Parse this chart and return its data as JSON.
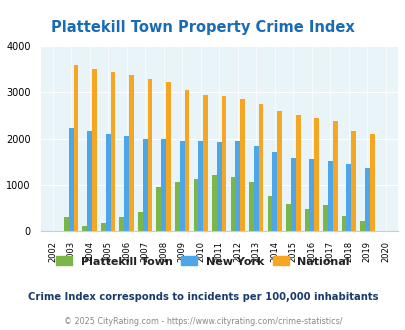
{
  "title": "Plattekill Town Property Crime Index",
  "years": [
    2002,
    2003,
    2004,
    2005,
    2006,
    2007,
    2008,
    2009,
    2010,
    2011,
    2012,
    2013,
    2014,
    2015,
    2016,
    2017,
    2018,
    2019,
    2020
  ],
  "plattekill": [
    0,
    310,
    110,
    175,
    300,
    415,
    950,
    1060,
    1120,
    1210,
    1170,
    1050,
    750,
    590,
    470,
    555,
    330,
    225,
    0
  ],
  "new_york": [
    0,
    2220,
    2170,
    2100,
    2060,
    1995,
    1995,
    1945,
    1945,
    1930,
    1945,
    1830,
    1700,
    1590,
    1555,
    1515,
    1445,
    1355,
    0
  ],
  "national": [
    0,
    3600,
    3510,
    3440,
    3370,
    3285,
    3225,
    3050,
    2950,
    2930,
    2855,
    2745,
    2600,
    2500,
    2445,
    2385,
    2175,
    2095,
    0
  ],
  "plattekill_color": "#7ab648",
  "newyork_color": "#4da6e8",
  "national_color": "#f5a623",
  "bg_color": "#e8f4f8",
  "ylim": [
    0,
    4000
  ],
  "yticks": [
    0,
    1000,
    2000,
    3000,
    4000
  ],
  "title_color": "#1a6bb5",
  "subtitle": "Crime Index corresponds to incidents per 100,000 inhabitants",
  "footer": "© 2025 CityRating.com - https://www.cityrating.com/crime-statistics/",
  "subtitle_color": "#1a3a6b",
  "footer_color": "#888888",
  "legend_labels": [
    "Plattekill Town",
    "New York",
    "National"
  ]
}
